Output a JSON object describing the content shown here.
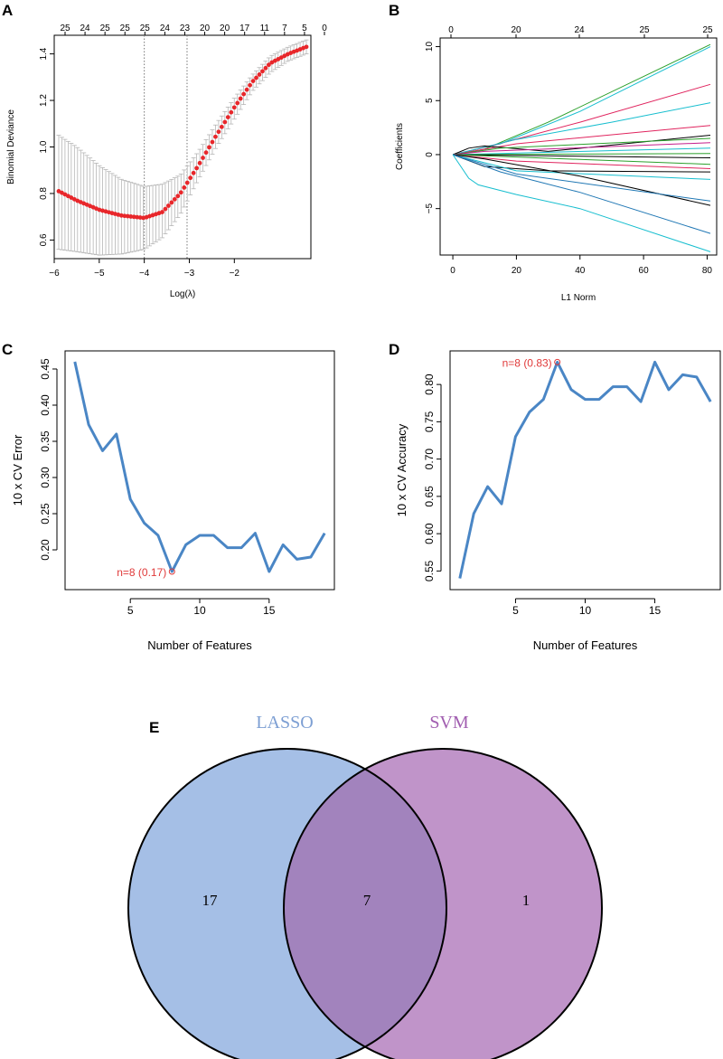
{
  "chart_data": [
    {
      "panel": "A",
      "type": "scatter",
      "title": "",
      "xlabel": "Log(λ)",
      "ylabel": "Binomial Deviance",
      "xlim": [
        -6.0,
        -0.3
      ],
      "ylim": [
        0.52,
        1.48
      ],
      "xticks": [
        -6,
        -5,
        -4,
        -3,
        -2
      ],
      "xtick_labels": [
        "−6",
        "−5",
        "−4",
        "−3",
        "−2"
      ],
      "yticks": [
        0.6,
        0.8,
        1.0,
        1.2,
        1.4
      ],
      "ytick_labels": [
        "0.6",
        "0.8",
        "1.0",
        "1.2",
        "1.4"
      ],
      "top_axis_labels": [
        "25",
        "24",
        "25",
        "25",
        "25",
        "24",
        "23",
        "20",
        "20",
        "17",
        "11",
        "7",
        "5",
        "0"
      ],
      "vlines": [
        -4.0,
        -3.05
      ],
      "curve_points": [
        [
          -5.9,
          0.81
        ],
        [
          -5.5,
          0.77
        ],
        [
          -5.0,
          0.73
        ],
        [
          -4.5,
          0.705
        ],
        [
          -4.0,
          0.695
        ],
        [
          -3.6,
          0.72
        ],
        [
          -3.2,
          0.8
        ],
        [
          -2.8,
          0.92
        ],
        [
          -2.4,
          1.05
        ],
        [
          -2.0,
          1.17
        ],
        [
          -1.6,
          1.28
        ],
        [
          -1.2,
          1.36
        ],
        [
          -0.8,
          1.4
        ],
        [
          -0.4,
          1.43
        ]
      ],
      "error_upper": [
        [
          -5.9,
          1.05
        ],
        [
          -5.5,
          1.0
        ],
        [
          -5.0,
          0.92
        ],
        [
          -4.5,
          0.86
        ],
        [
          -4.0,
          0.83
        ],
        [
          -3.6,
          0.84
        ],
        [
          -3.2,
          0.88
        ],
        [
          -2.8,
          0.98
        ],
        [
          -2.4,
          1.1
        ],
        [
          -2.0,
          1.21
        ],
        [
          -1.6,
          1.31
        ],
        [
          -1.2,
          1.39
        ],
        [
          -0.8,
          1.43
        ],
        [
          -0.4,
          1.46
        ]
      ],
      "error_lower": [
        [
          -5.9,
          0.56
        ],
        [
          -5.5,
          0.55
        ],
        [
          -5.0,
          0.535
        ],
        [
          -4.5,
          0.54
        ],
        [
          -4.0,
          0.56
        ],
        [
          -3.6,
          0.61
        ],
        [
          -3.2,
          0.71
        ],
        [
          -2.8,
          0.86
        ],
        [
          -2.4,
          1.0
        ],
        [
          -2.0,
          1.12
        ],
        [
          -1.6,
          1.24
        ],
        [
          -1.2,
          1.32
        ],
        [
          -0.8,
          1.37
        ],
        [
          -0.4,
          1.4
        ]
      ]
    },
    {
      "panel": "B",
      "type": "line",
      "title": "",
      "xlabel": "L1 Norm",
      "ylabel": "Coefficients",
      "xlim": [
        -4,
        83
      ],
      "ylim": [
        -9.3,
        10.8
      ],
      "xticks": [
        0,
        20,
        40,
        60,
        80
      ],
      "xtick_labels": [
        "0",
        "20",
        "40",
        "60",
        "80"
      ],
      "yticks": [
        -5,
        0,
        5,
        10
      ],
      "ytick_labels": [
        "−5",
        "0",
        "5",
        "10"
      ],
      "top_axis_labels": [
        "0",
        "20",
        "24",
        "25",
        "25"
      ],
      "series": [
        {
          "color": "#2ca02c",
          "points": [
            [
              0,
              0
            ],
            [
              10,
              0.5
            ],
            [
              30,
              3
            ],
            [
              81,
              10.2
            ]
          ]
        },
        {
          "color": "#17becf",
          "points": [
            [
              0,
              0
            ],
            [
              15,
              1
            ],
            [
              40,
              4
            ],
            [
              81,
              10
            ]
          ]
        },
        {
          "color": "#e0245e",
          "points": [
            [
              0,
              0
            ],
            [
              12,
              0.8
            ],
            [
              40,
              3
            ],
            [
              81,
              6.5
            ]
          ]
        },
        {
          "color": "#17becf",
          "points": [
            [
              0,
              0
            ],
            [
              20,
              1.4
            ],
            [
              50,
              3
            ],
            [
              81,
              4.8
            ]
          ]
        },
        {
          "color": "#e0245e",
          "points": [
            [
              0,
              0
            ],
            [
              20,
              1.0
            ],
            [
              81,
              2.7
            ]
          ]
        },
        {
          "color": "#000000",
          "points": [
            [
              0,
              0
            ],
            [
              5,
              0.6
            ],
            [
              10,
              0.8
            ],
            [
              30,
              0.3
            ],
            [
              81,
              1.8
            ]
          ]
        },
        {
          "color": "#2ca02c",
          "points": [
            [
              0,
              0
            ],
            [
              15,
              0.6
            ],
            [
              81,
              1.5
            ]
          ]
        },
        {
          "color": "#c41e8c",
          "points": [
            [
              0,
              0
            ],
            [
              10,
              0.3
            ],
            [
              81,
              1.1
            ]
          ]
        },
        {
          "color": "#17becf",
          "points": [
            [
              0,
              0
            ],
            [
              81,
              0.6
            ]
          ]
        },
        {
          "color": "#2ca02c",
          "points": [
            [
              0,
              0
            ],
            [
              81,
              0.1
            ]
          ]
        },
        {
          "color": "#000000",
          "points": [
            [
              0,
              0
            ],
            [
              81,
              -0.3
            ]
          ]
        },
        {
          "color": "#2ca02c",
          "points": [
            [
              0,
              0
            ],
            [
              81,
              -0.9
            ]
          ]
        },
        {
          "color": "#e0245e",
          "points": [
            [
              0,
              0
            ],
            [
              20,
              -0.6
            ],
            [
              81,
              -1.3
            ]
          ]
        },
        {
          "color": "#000000",
          "points": [
            [
              0,
              0
            ],
            [
              10,
              -1.1
            ],
            [
              30,
              -1.5
            ],
            [
              81,
              -1.6
            ]
          ]
        },
        {
          "color": "#17becf",
          "points": [
            [
              0,
              0
            ],
            [
              20,
              -1.5
            ],
            [
              81,
              -2.3
            ]
          ]
        },
        {
          "color": "#000000",
          "points": [
            [
              0,
              0
            ],
            [
              10,
              -0.4
            ],
            [
              40,
              -2
            ],
            [
              81,
              -4.7
            ]
          ]
        },
        {
          "color": "#1f77b4",
          "points": [
            [
              0,
              0
            ],
            [
              20,
              -1.8
            ],
            [
              81,
              -4.3
            ]
          ]
        },
        {
          "color": "#1f77b4",
          "points": [
            [
              0,
              0
            ],
            [
              15,
              -1.6
            ],
            [
              40,
              -3.5
            ],
            [
              81,
              -7.3
            ]
          ]
        },
        {
          "color": "#17becf",
          "points": [
            [
              0,
              0
            ],
            [
              5,
              -2.2
            ],
            [
              8,
              -2.8
            ],
            [
              20,
              -3.7
            ],
            [
              40,
              -5
            ],
            [
              81,
              -9
            ]
          ]
        }
      ]
    },
    {
      "panel": "C",
      "type": "line",
      "title": "",
      "xlabel": "Number of Features",
      "ylabel": "10 x CV Error",
      "xlim": [
        0.3,
        19.7
      ],
      "ylim": [
        0.145,
        0.475
      ],
      "xticks": [
        5,
        10,
        15
      ],
      "xtick_labels": [
        "5",
        "10",
        "15"
      ],
      "yticks": [
        0.2,
        0.25,
        0.3,
        0.35,
        0.4,
        0.45
      ],
      "ytick_labels": [
        "0.20",
        "0.25",
        "0.30",
        "0.35",
        "0.40",
        "0.45"
      ],
      "x": [
        1,
        2,
        3,
        4,
        5,
        6,
        7,
        8,
        9,
        10,
        11,
        12,
        13,
        14,
        15,
        16,
        17,
        18,
        19
      ],
      "values": [
        0.46,
        0.373,
        0.337,
        0.36,
        0.27,
        0.237,
        0.22,
        0.17,
        0.207,
        0.22,
        0.22,
        0.203,
        0.203,
        0.223,
        0.17,
        0.207,
        0.187,
        0.19,
        0.223
      ],
      "highlight_x": 8,
      "highlight_label": "n=8 (0.17)",
      "line_color": "#4a86c5",
      "annotation_color": "#e03a3a"
    },
    {
      "panel": "D",
      "type": "line",
      "title": "",
      "xlabel": "Number of Features",
      "ylabel": "10 x CV Accuracy",
      "xlim": [
        0.3,
        19.7
      ],
      "ylim": [
        0.525,
        0.845
      ],
      "xticks": [
        5,
        10,
        15
      ],
      "xtick_labels": [
        "5",
        "10",
        "15"
      ],
      "yticks": [
        0.55,
        0.6,
        0.65,
        0.7,
        0.75,
        0.8
      ],
      "ytick_labels": [
        "0.55",
        "0.60",
        "0.65",
        "0.70",
        "0.75",
        "0.80"
      ],
      "x": [
        1,
        2,
        3,
        4,
        5,
        6,
        7,
        8,
        9,
        10,
        11,
        12,
        13,
        14,
        15,
        16,
        17,
        18,
        19
      ],
      "values": [
        0.54,
        0.627,
        0.663,
        0.64,
        0.73,
        0.763,
        0.78,
        0.83,
        0.793,
        0.78,
        0.78,
        0.797,
        0.797,
        0.777,
        0.83,
        0.793,
        0.813,
        0.81,
        0.777
      ],
      "highlight_x": 8,
      "highlight_label": "n=8 (0.83)",
      "line_color": "#4a86c5",
      "annotation_color": "#e03a3a"
    },
    {
      "panel": "E",
      "type": "venn",
      "sets": [
        {
          "name": "LASSO",
          "only_count": "17",
          "fill": "#a5bfe6",
          "label_color": "#7d9fd3"
        },
        {
          "name": "SVM",
          "only_count": "1",
          "fill": "#c094c9",
          "label_color": "#a15eb0"
        }
      ],
      "intersection_count": "7",
      "intersection_fill": "#a283bd"
    }
  ],
  "panel_labels": {
    "a": "A",
    "b": "B",
    "c": "C",
    "d": "D",
    "e": "E"
  }
}
